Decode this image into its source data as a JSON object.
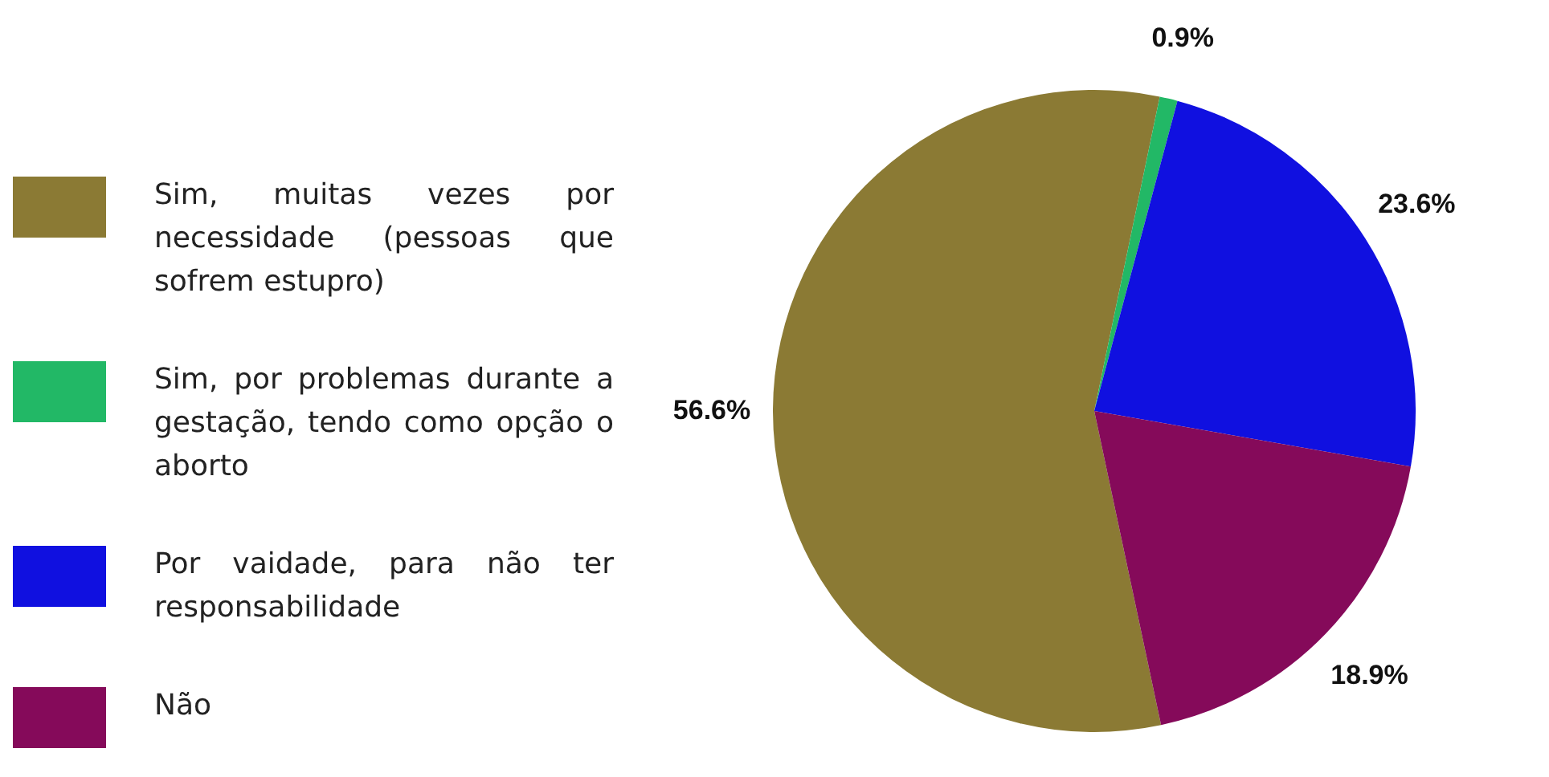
{
  "chart_data": {
    "type": "pie",
    "categories": [
      "Sim, muitas vezes por necessidade (pessoas que sofrem estupro)",
      "Sim, por problemas durante a gestação, tendo como opção o aborto",
      "Por vaidade, para não ter responsabilidade",
      "Não"
    ],
    "values": [
      56.6,
      0.9,
      23.6,
      18.9
    ],
    "colors": [
      "#8b7a34",
      "#22b866",
      "#1010e0",
      "#850a5a"
    ],
    "value_labels": [
      "56.6%",
      "0.9%",
      "23.6%",
      "18.9%"
    ],
    "legend": "left"
  }
}
